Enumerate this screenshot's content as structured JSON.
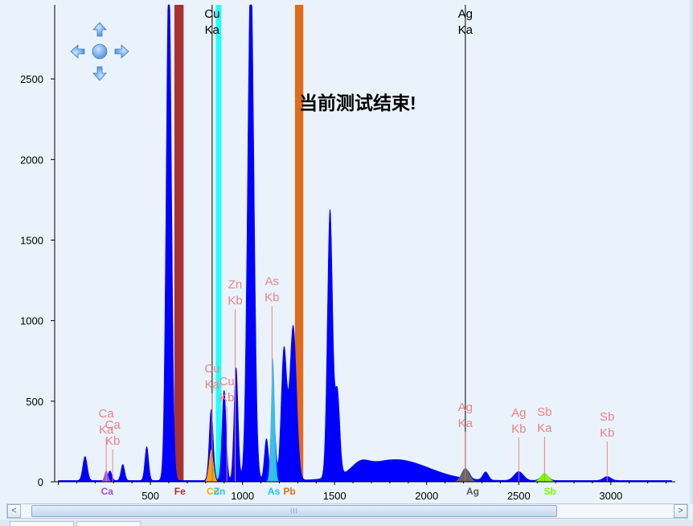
{
  "chart_data": {
    "type": "area",
    "title": "",
    "xlabel": "",
    "ylabel": "",
    "xlim": [
      -20,
      3350
    ],
    "ylim": [
      0,
      2960
    ],
    "x_ticks": [
      500,
      1000,
      1500,
      2000,
      2500,
      3000
    ],
    "y_ticks": [
      0,
      500,
      1000,
      1500,
      2000,
      2500
    ],
    "status_message": "当前测试结束!",
    "spectrum_color": "#0000ff",
    "spectrum_peaks": [
      {
        "x": 145,
        "height": 150,
        "width": 12
      },
      {
        "x": 280,
        "height": 60,
        "width": 10
      },
      {
        "x": 350,
        "height": 100,
        "width": 10
      },
      {
        "x": 480,
        "height": 210,
        "width": 10
      },
      {
        "x": 600,
        "height": 3200,
        "width": 14
      },
      {
        "x": 830,
        "height": 440,
        "width": 11
      },
      {
        "x": 900,
        "height": 560,
        "width": 11
      },
      {
        "x": 965,
        "height": 700,
        "width": 11
      },
      {
        "x": 1045,
        "height": 3200,
        "width": 17
      },
      {
        "x": 1130,
        "height": 260,
        "width": 11
      },
      {
        "x": 1170,
        "height": 380,
        "width": 10
      },
      {
        "x": 1225,
        "height": 810,
        "width": 15
      },
      {
        "x": 1275,
        "height": 960,
        "width": 18
      },
      {
        "x": 1475,
        "height": 1660,
        "width": 14
      },
      {
        "x": 1515,
        "height": 520,
        "width": 13
      },
      {
        "x": 1830,
        "height": 130,
        "width": 180
      },
      {
        "x": 1640,
        "height": 50,
        "width": 45
      },
      {
        "x": 2220,
        "height": 50,
        "width": 15
      },
      {
        "x": 2320,
        "height": 50,
        "width": 15
      },
      {
        "x": 2500,
        "height": 55,
        "width": 25
      },
      {
        "x": 2640,
        "height": 40,
        "width": 20
      },
      {
        "x": 2980,
        "height": 25,
        "width": 20
      }
    ],
    "element_bands": [
      {
        "element": "Fe",
        "x": 6.4,
        "xmin": 630,
        "xmax": 680,
        "color": "#a83232"
      },
      {
        "element": "Cu",
        "x": 8.04,
        "xmin": 855,
        "xmax": 885,
        "color": "#22ffff"
      },
      {
        "element": "Pb",
        "x": 10.55,
        "xmin": 1285,
        "xmax": 1330,
        "color": "#e06b1a"
      }
    ],
    "peak_markers": [
      {
        "label": "Cu Ka",
        "line1": "Cu",
        "line2": "Ka",
        "x": 835,
        "top": 2960,
        "color": "#000000"
      },
      {
        "label": "Ag Ka",
        "line1": "Ag",
        "line2": "Ka",
        "x": 2210,
        "top": 2960,
        "color": "#000000"
      },
      {
        "label": "Ca Ka",
        "line1": "Ca",
        "line2": "Ka",
        "x": 260,
        "top": 280,
        "color": "#f08080"
      },
      {
        "label": "Ca Kb",
        "line1": "Ca",
        "line2": "Kb",
        "x": 295,
        "top": 210,
        "color": "#f08080"
      },
      {
        "label": "Cu Ka",
        "line1": "Cu",
        "line2": "Ka",
        "x": 835,
        "top": 560,
        "color": "#f08080"
      },
      {
        "label": "Cu Kb",
        "line1": "Cu",
        "line2": "Kb",
        "x": 915,
        "top": 480,
        "color": "#f08080"
      },
      {
        "label": "Zn Kb",
        "line1": "Zn",
        "line2": "Kb",
        "x": 960,
        "top": 1080,
        "color": "#f08080"
      },
      {
        "label": "As Kb",
        "line1": "As",
        "line2": "Kb",
        "x": 1160,
        "top": 1100,
        "color": "#f08080"
      },
      {
        "label": "Ag Ka",
        "line1": "Ag",
        "line2": "Ka",
        "x": 2210,
        "top": 320,
        "color": "#f08080"
      },
      {
        "label": "Ag Kb",
        "line1": "Ag",
        "line2": "Kb",
        "x": 2500,
        "top": 285,
        "color": "#f08080"
      },
      {
        "label": "Sb Ka",
        "line1": "Sb",
        "line2": "Ka",
        "x": 2640,
        "top": 290,
        "color": "#f08080"
      },
      {
        "label": "Sb Kb",
        "line1": "Sb",
        "line2": "Kb",
        "x": 2980,
        "top": 260,
        "color": "#f08080"
      }
    ],
    "overlay_peaks": [
      {
        "x": 260,
        "height": 70,
        "width": 10,
        "color": "#9b4fd6"
      },
      {
        "x": 830,
        "height": 200,
        "width": 12,
        "color": "#ffa500"
      },
      {
        "x": 1165,
        "height": 770,
        "width": 10,
        "color": "#18c8ff"
      },
      {
        "x": 2210,
        "height": 85,
        "width": 22,
        "color": "#666666"
      },
      {
        "x": 2640,
        "height": 55,
        "width": 22,
        "color": "#7cfc00"
      }
    ],
    "element_labels": [
      {
        "text": "Ca",
        "x": 265,
        "color": "#9b4fd6"
      },
      {
        "text": "Fe",
        "x": 660,
        "color": "#a83232"
      },
      {
        "text": "Cu",
        "x": 840,
        "color": "#ffa500"
      },
      {
        "text": "Zn",
        "x": 875,
        "color": "#18c8ff"
      },
      {
        "text": "As",
        "x": 1170,
        "color": "#18c8ff"
      },
      {
        "text": "Pb",
        "x": 1255,
        "color": "#e06b1a"
      },
      {
        "text": "Ag",
        "x": 2250,
        "color": "#555555"
      },
      {
        "text": "Sb",
        "x": 2670,
        "color": "#7cfc00"
      }
    ],
    "pan_control": [
      "pan-up-icon",
      "pan-left-icon",
      "pan-center-icon",
      "pan-right-icon",
      "pan-down-icon"
    ],
    "grid": false,
    "legend": "none"
  },
  "scrollbar": {
    "left_arrow": "<",
    "right_arrow": ">",
    "grip": "III"
  }
}
